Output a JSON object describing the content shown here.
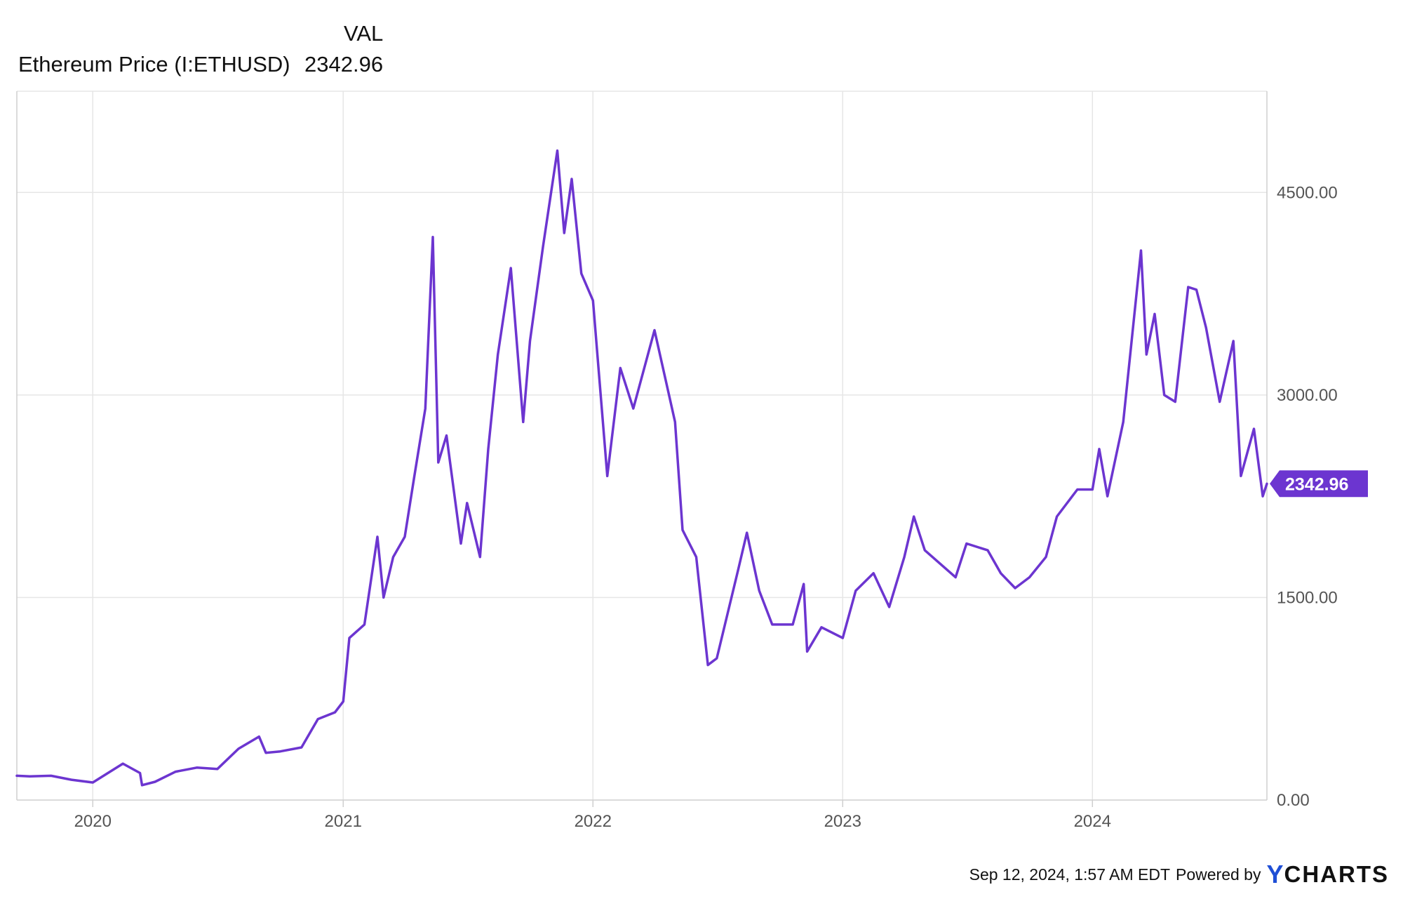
{
  "legend": {
    "column_label": "VAL",
    "series_name": "Ethereum Price (I:ETHUSD)",
    "series_value": "2342.96"
  },
  "footer": {
    "timestamp": "Sep 12, 2024, 1:57 AM EDT",
    "powered_by": "Powered by",
    "brand_y": "Y",
    "brand_rest": "CHARTS"
  },
  "colors": {
    "series": "#6c35d0",
    "grid": "#e6e6e6",
    "axis": "#cfcfcf",
    "tag_bg": "#6c35d0"
  },
  "chart_data": {
    "type": "line",
    "title": "",
    "xlabel": "",
    "ylabel": "",
    "x_range": [
      "2019-09-12",
      "2024-09-12"
    ],
    "ylim": [
      0,
      5250
    ],
    "y_ticks": [
      0,
      1500,
      3000,
      4500
    ],
    "y_tick_labels": [
      "0.00",
      "1500.00",
      "3000.00",
      "4500.00"
    ],
    "x_ticks": [
      "2020-01-01",
      "2021-01-01",
      "2022-01-01",
      "2023-01-01",
      "2024-01-01"
    ],
    "x_tick_labels": [
      "2020",
      "2021",
      "2022",
      "2023",
      "2024"
    ],
    "grid": true,
    "legend_position": "top-left",
    "last_value_label": "2342.96",
    "series": [
      {
        "name": "Ethereum Price (I:ETHUSD)",
        "points": [
          [
            "2019-09-12",
            180
          ],
          [
            "2019-10-01",
            175
          ],
          [
            "2019-11-01",
            180
          ],
          [
            "2019-12-01",
            150
          ],
          [
            "2020-01-01",
            130
          ],
          [
            "2020-02-14",
            270
          ],
          [
            "2020-03-10",
            200
          ],
          [
            "2020-03-13",
            110
          ],
          [
            "2020-04-01",
            135
          ],
          [
            "2020-05-01",
            210
          ],
          [
            "2020-06-01",
            240
          ],
          [
            "2020-07-01",
            230
          ],
          [
            "2020-08-01",
            380
          ],
          [
            "2020-08-31",
            470
          ],
          [
            "2020-09-10",
            350
          ],
          [
            "2020-10-01",
            360
          ],
          [
            "2020-11-01",
            390
          ],
          [
            "2020-11-25",
            600
          ],
          [
            "2020-12-20",
            650
          ],
          [
            "2021-01-01",
            730
          ],
          [
            "2021-01-10",
            1200
          ],
          [
            "2021-02-01",
            1300
          ],
          [
            "2021-02-20",
            1950
          ],
          [
            "2021-03-01",
            1500
          ],
          [
            "2021-03-15",
            1800
          ],
          [
            "2021-04-01",
            1950
          ],
          [
            "2021-04-15",
            2400
          ],
          [
            "2021-05-01",
            2900
          ],
          [
            "2021-05-12",
            4170
          ],
          [
            "2021-05-20",
            2500
          ],
          [
            "2021-06-01",
            2700
          ],
          [
            "2021-06-22",
            1900
          ],
          [
            "2021-07-01",
            2200
          ],
          [
            "2021-07-20",
            1800
          ],
          [
            "2021-08-01",
            2600
          ],
          [
            "2021-08-15",
            3300
          ],
          [
            "2021-09-03",
            3940
          ],
          [
            "2021-09-21",
            2800
          ],
          [
            "2021-10-01",
            3400
          ],
          [
            "2021-10-20",
            4100
          ],
          [
            "2021-11-10",
            4810
          ],
          [
            "2021-11-20",
            4200
          ],
          [
            "2021-12-01",
            4600
          ],
          [
            "2021-12-15",
            3900
          ],
          [
            "2022-01-01",
            3700
          ],
          [
            "2022-01-22",
            2400
          ],
          [
            "2022-02-10",
            3200
          ],
          [
            "2022-03-01",
            2900
          ],
          [
            "2022-04-01",
            3480
          ],
          [
            "2022-05-01",
            2800
          ],
          [
            "2022-05-12",
            2000
          ],
          [
            "2022-06-01",
            1800
          ],
          [
            "2022-06-18",
            1000
          ],
          [
            "2022-07-01",
            1050
          ],
          [
            "2022-08-01",
            1700
          ],
          [
            "2022-08-14",
            1980
          ],
          [
            "2022-09-01",
            1550
          ],
          [
            "2022-09-20",
            1300
          ],
          [
            "2022-10-20",
            1300
          ],
          [
            "2022-11-05",
            1600
          ],
          [
            "2022-11-10",
            1100
          ],
          [
            "2022-12-01",
            1280
          ],
          [
            "2023-01-01",
            1200
          ],
          [
            "2023-01-20",
            1550
          ],
          [
            "2023-02-15",
            1680
          ],
          [
            "2023-03-10",
            1430
          ],
          [
            "2023-04-01",
            1800
          ],
          [
            "2023-04-15",
            2100
          ],
          [
            "2023-05-01",
            1850
          ],
          [
            "2023-06-15",
            1650
          ],
          [
            "2023-07-01",
            1900
          ],
          [
            "2023-08-01",
            1850
          ],
          [
            "2023-08-20",
            1680
          ],
          [
            "2023-09-10",
            1570
          ],
          [
            "2023-10-01",
            1650
          ],
          [
            "2023-10-25",
            1800
          ],
          [
            "2023-11-10",
            2100
          ],
          [
            "2023-12-10",
            2300
          ],
          [
            "2024-01-01",
            2300
          ],
          [
            "2024-01-11",
            2600
          ],
          [
            "2024-01-23",
            2250
          ],
          [
            "2024-02-15",
            2800
          ],
          [
            "2024-03-12",
            4070
          ],
          [
            "2024-03-20",
            3300
          ],
          [
            "2024-04-01",
            3600
          ],
          [
            "2024-04-15",
            3000
          ],
          [
            "2024-05-01",
            2950
          ],
          [
            "2024-05-20",
            3800
          ],
          [
            "2024-06-01",
            3780
          ],
          [
            "2024-06-15",
            3500
          ],
          [
            "2024-07-05",
            2950
          ],
          [
            "2024-07-25",
            3400
          ],
          [
            "2024-08-05",
            2400
          ],
          [
            "2024-08-24",
            2750
          ],
          [
            "2024-09-06",
            2250
          ],
          [
            "2024-09-12",
            2342.96
          ]
        ]
      }
    ]
  }
}
